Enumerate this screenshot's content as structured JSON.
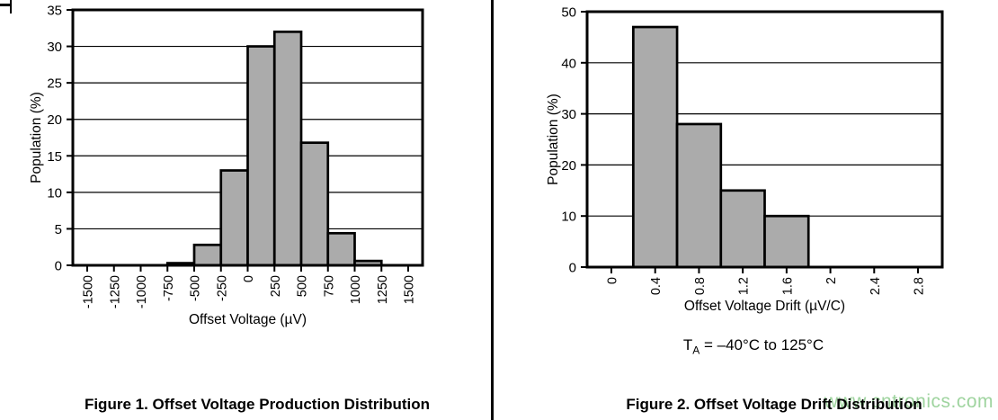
{
  "page": {
    "figure1_caption": "Figure 1. Offset Voltage Production Distribution",
    "figure2_caption": "Figure 2. Offset Voltage Drift Distribution",
    "figure2_condition": {
      "t": "T",
      "sub": "A",
      "rest": " = –40°C to 125°C"
    },
    "watermark": "www.cntronics.com"
  },
  "colors": {
    "bar_fill": "#ababab",
    "axis_black": "#000000",
    "watermark_green": "#9fd49f"
  },
  "chart_data": [
    {
      "type": "bar",
      "title": "Offset Voltage Production Distribution",
      "xlabel": "Offset Voltage (µV)",
      "ylabel": "Population (%)",
      "x_tick_values": [
        -1500,
        -1250,
        -1000,
        -750,
        -500,
        -250,
        0,
        250,
        500,
        750,
        1000,
        1250,
        1500
      ],
      "x_tick_labels": [
        "-1500",
        "-1250",
        "-1000",
        "-750",
        "-500",
        "-250",
        "0",
        "250",
        "500",
        "750",
        "1000",
        "1250",
        "1500"
      ],
      "ylim": [
        0,
        35
      ],
      "ytick_step": 5,
      "y_tick_labels": [
        "0",
        "5",
        "10",
        "15",
        "20",
        "25",
        "30",
        "35"
      ],
      "grid": "horizontal",
      "legend": "none",
      "bins": [
        {
          "from": -1500,
          "to": -1250,
          "value": 0
        },
        {
          "from": -1250,
          "to": -1000,
          "value": 0
        },
        {
          "from": -1000,
          "to": -750,
          "value": 0
        },
        {
          "from": -750,
          "to": -500,
          "value": 0.3
        },
        {
          "from": -500,
          "to": -250,
          "value": 2.8
        },
        {
          "from": -250,
          "to": 0,
          "value": 13
        },
        {
          "from": 0,
          "to": 250,
          "value": 30
        },
        {
          "from": 250,
          "to": 500,
          "value": 32
        },
        {
          "from": 500,
          "to": 750,
          "value": 16.8
        },
        {
          "from": 750,
          "to": 1000,
          "value": 4.4
        },
        {
          "from": 1000,
          "to": 1250,
          "value": 0.6
        },
        {
          "from": 1250,
          "to": 1500,
          "value": 0
        }
      ]
    },
    {
      "type": "bar",
      "title": "Offset Voltage Drift Distribution",
      "xlabel": "Offset Voltage Drift (µV/C)",
      "ylabel": "Population (%)",
      "x_tick_values": [
        0,
        0.4,
        0.8,
        1.2,
        1.6,
        2,
        2.4,
        2.8
      ],
      "x_tick_labels": [
        "0",
        "0.4",
        "0.8",
        "1.2",
        "1.6",
        "2",
        "2.4",
        "2.8"
      ],
      "ylim": [
        0,
        50
      ],
      "ytick_step": 10,
      "y_tick_labels": [
        "0",
        "10",
        "20",
        "30",
        "40",
        "50"
      ],
      "grid": "horizontal",
      "legend": "none",
      "condition": "TA = –40°C to 125°C",
      "bins": [
        {
          "from": 0.2,
          "to": 0.6,
          "value": 47
        },
        {
          "from": 0.6,
          "to": 1.0,
          "value": 28
        },
        {
          "from": 1.0,
          "to": 1.4,
          "value": 15
        },
        {
          "from": 1.4,
          "to": 1.8,
          "value": 10
        }
      ]
    }
  ]
}
